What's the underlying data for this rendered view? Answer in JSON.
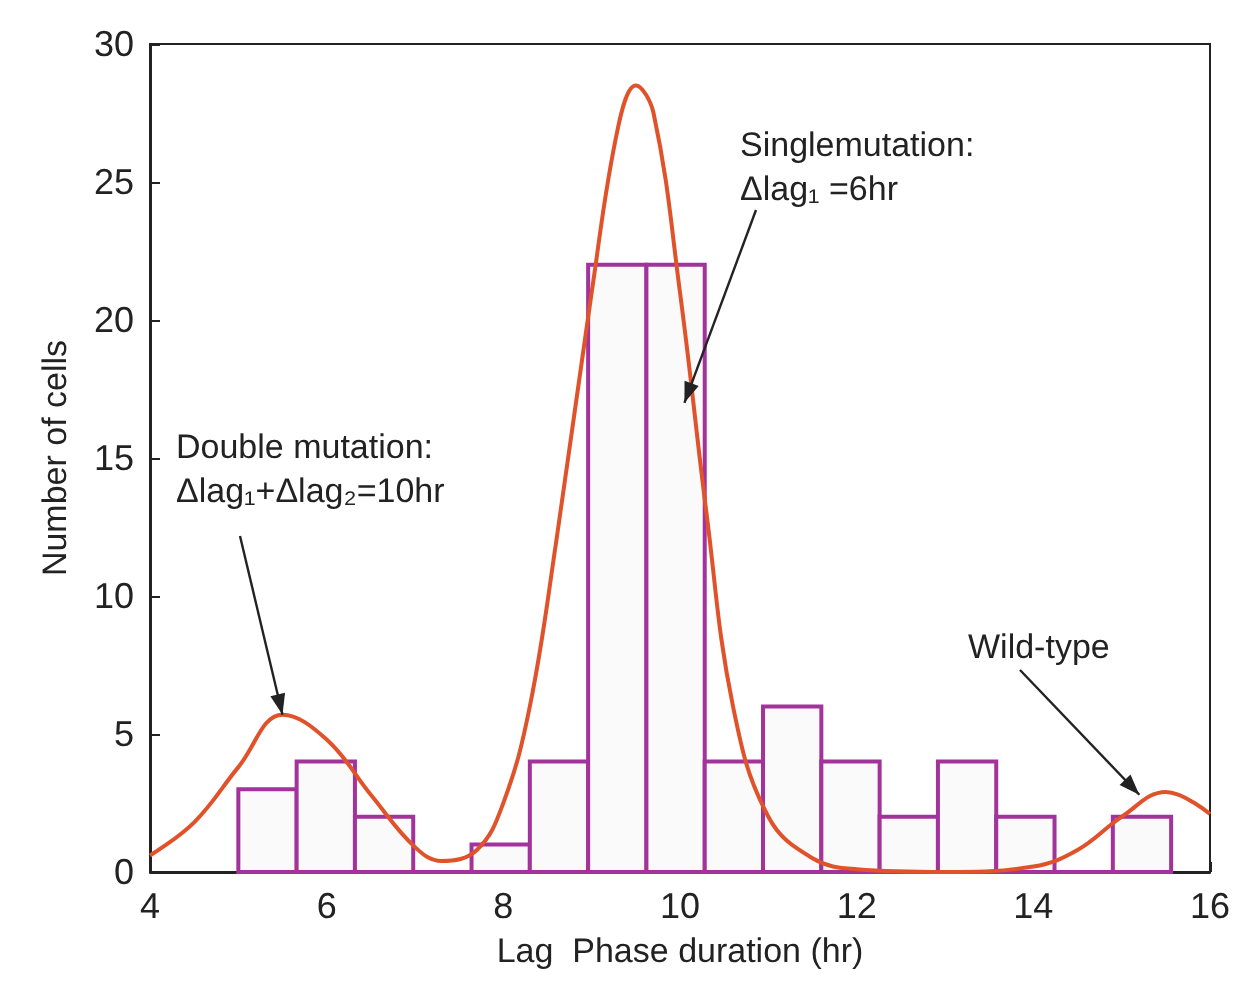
{
  "chart_data": {
    "type": "histogram",
    "xlabel": "Lag  Phase duration (hr)",
    "ylabel": "Number of cells",
    "bins": [
      5,
      5.66,
      6.32,
      6.98,
      7.64,
      8.3,
      8.96,
      9.62,
      10.28,
      10.94,
      11.6,
      12.26,
      12.92,
      13.58,
      14.24,
      14.9,
      15.56
    ],
    "values": [
      3,
      4,
      2,
      0,
      1,
      4,
      22,
      22,
      4,
      6,
      4,
      2,
      4,
      2,
      0,
      2
    ],
    "color": "#a2339b",
    "series": [
      {
        "type": "line",
        "color": "#e0522a",
        "x": [
          4,
          4.5,
          5,
          5.5,
          6,
          6.5,
          7,
          7.3,
          7.7,
          8,
          8.3,
          8.6,
          9,
          9.3,
          9.5,
          9.7,
          10,
          10.3,
          10.6,
          11,
          11.5,
          12,
          13,
          14,
          14.5,
          15,
          15.5,
          16
        ],
        "values": [
          0.6,
          1.8,
          3.8,
          5.7,
          4.8,
          2.8,
          0.9,
          0.4,
          0.8,
          2.5,
          6,
          12,
          21,
          27,
          28.5,
          27.5,
          21,
          13,
          6,
          2,
          0.5,
          0.1,
          0,
          0.2,
          0.8,
          2,
          2.9,
          2.1
        ]
      }
    ],
    "annotations": [
      {
        "text": "Singlemutation:\nΔlag₁ =6hr",
        "x": 10.05,
        "y": 17
      },
      {
        "text": "Double mutation:\nΔlag₁+Δlag₂=10hr",
        "x": 5.5,
        "y": 5.7
      },
      {
        "text": "Wild-type",
        "x": 15.2,
        "y": 2.8
      }
    ],
    "xlim": [
      4,
      16
    ],
    "xticks": [
      4,
      6,
      8,
      10,
      12,
      14,
      16
    ],
    "ylim": [
      0,
      30
    ],
    "yticks": [
      0,
      5,
      10,
      15,
      20,
      25,
      30
    ],
    "grid": false
  }
}
